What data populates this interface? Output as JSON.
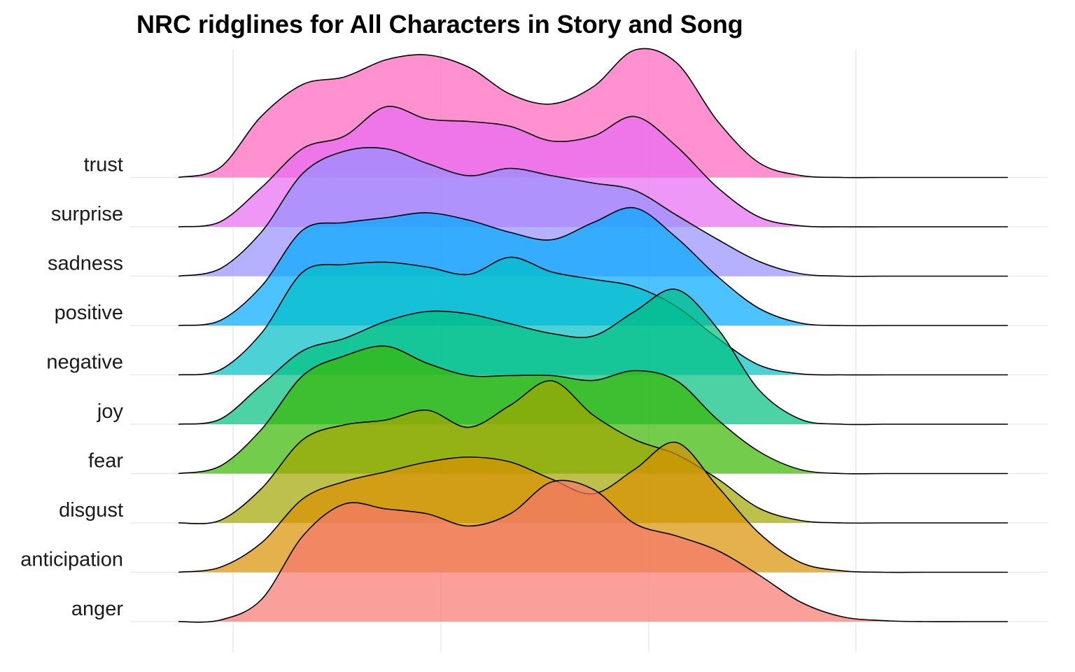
{
  "chart_data": {
    "type": "ridgeline",
    "title": "NRC ridglines for All Characters in Story and Song",
    "xlabel": "",
    "ylabel": "",
    "grid": true,
    "legend": "none",
    "xlim": [
      0,
      1
    ],
    "x": [
      0.0,
      0.05,
      0.1,
      0.15,
      0.2,
      0.25,
      0.3,
      0.35,
      0.4,
      0.45,
      0.5,
      0.55,
      0.6,
      0.65,
      0.7,
      0.75,
      0.8,
      0.85,
      0.9,
      0.95,
      1.0
    ],
    "y_unit_height": 70,
    "series": [
      {
        "name": "anger",
        "color": "#F8766D",
        "values": [
          0,
          0.03,
          0.45,
          1.75,
          2.4,
          2.3,
          2.2,
          1.95,
          2.2,
          2.85,
          2.7,
          2.0,
          1.75,
          1.45,
          0.95,
          0.4,
          0.1,
          0.02,
          0,
          0,
          0
        ]
      },
      {
        "name": "anticipation",
        "color": "#D89000",
        "values": [
          0,
          0.1,
          0.6,
          1.5,
          1.85,
          2.05,
          2.25,
          2.35,
          2.25,
          1.9,
          1.6,
          2.1,
          2.65,
          1.75,
          0.8,
          0.2,
          0.03,
          0,
          0,
          0,
          0
        ]
      },
      {
        "name": "disgust",
        "color": "#A3A500",
        "values": [
          0,
          0.05,
          0.7,
          1.7,
          2.0,
          2.1,
          2.3,
          1.95,
          2.4,
          2.9,
          2.2,
          1.7,
          1.4,
          0.9,
          0.3,
          0.05,
          0,
          0,
          0,
          0,
          0
        ]
      },
      {
        "name": "fear",
        "color": "#39B600",
        "values": [
          0,
          0.15,
          0.9,
          2.0,
          2.4,
          2.6,
          2.25,
          2.0,
          2.0,
          2.0,
          1.9,
          2.1,
          1.9,
          1.1,
          0.45,
          0.08,
          0,
          0,
          0,
          0,
          0
        ]
      },
      {
        "name": "joy",
        "color": "#00BF7D",
        "values": [
          0,
          0.1,
          0.8,
          1.5,
          1.75,
          2.1,
          2.3,
          2.25,
          2.05,
          1.85,
          1.8,
          2.3,
          2.75,
          1.95,
          0.7,
          0.1,
          0,
          0,
          0,
          0,
          0
        ]
      },
      {
        "name": "negative",
        "color": "#00BFC4",
        "values": [
          0,
          0.1,
          0.85,
          2.1,
          2.25,
          2.3,
          2.2,
          2.05,
          2.4,
          2.1,
          1.95,
          1.8,
          1.4,
          0.75,
          0.2,
          0.02,
          0,
          0,
          0,
          0,
          0
        ]
      },
      {
        "name": "positive",
        "color": "#00A9FF",
        "values": [
          0,
          0.1,
          0.8,
          1.95,
          2.1,
          2.2,
          2.3,
          2.15,
          1.9,
          1.75,
          2.1,
          2.4,
          1.8,
          1.0,
          0.35,
          0.05,
          0,
          0,
          0,
          0,
          0
        ]
      },
      {
        "name": "sadness",
        "color": "#9590FF",
        "values": [
          0,
          0.15,
          0.9,
          2.1,
          2.55,
          2.6,
          2.3,
          2.05,
          2.2,
          2.05,
          1.9,
          1.75,
          1.25,
          0.75,
          0.3,
          0.05,
          0,
          0,
          0,
          0,
          0
        ]
      },
      {
        "name": "surprise",
        "color": "#E76BF3",
        "values": [
          0,
          0.1,
          0.8,
          1.6,
          1.85,
          2.45,
          2.2,
          2.15,
          2.05,
          1.75,
          1.85,
          2.25,
          1.65,
          0.8,
          0.2,
          0.02,
          0,
          0,
          0,
          0,
          0
        ]
      },
      {
        "name": "trust",
        "color": "#FF62BC",
        "values": [
          0,
          0.2,
          1.25,
          1.9,
          2.05,
          2.4,
          2.5,
          2.25,
          1.7,
          1.5,
          1.85,
          2.6,
          2.35,
          1.15,
          0.3,
          0.04,
          0,
          0,
          0,
          0,
          0
        ]
      }
    ]
  }
}
